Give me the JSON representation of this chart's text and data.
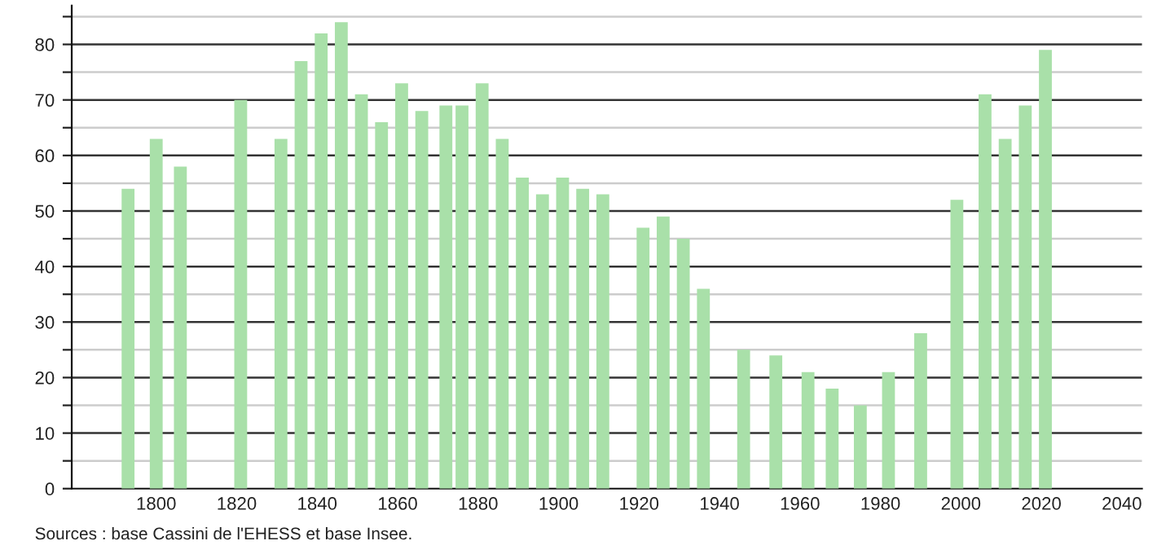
{
  "chart_data": {
    "type": "bar",
    "x": [
      1793,
      1800,
      1806,
      1821,
      1831,
      1836,
      1841,
      1846,
      1851,
      1856,
      1861,
      1866,
      1872,
      1876,
      1881,
      1886,
      1891,
      1896,
      1901,
      1906,
      1911,
      1921,
      1926,
      1931,
      1936,
      1946,
      1954,
      1962,
      1968,
      1975,
      1982,
      1990,
      1999,
      2006,
      2011,
      2016,
      2021
    ],
    "values": [
      54,
      63,
      58,
      70,
      63,
      77,
      82,
      84,
      71,
      66,
      73,
      68,
      69,
      69,
      73,
      63,
      56,
      53,
      56,
      54,
      53,
      47,
      49,
      45,
      36,
      25,
      24,
      21,
      18,
      15,
      21,
      28,
      52,
      71,
      63,
      69,
      79
    ],
    "color": "#a9e0a9",
    "xlim": [
      1779,
      2045
    ],
    "xticks": [
      1800,
      1820,
      1840,
      1860,
      1880,
      1900,
      1920,
      1940,
      1960,
      1980,
      2000,
      2020,
      2040
    ],
    "ylim": [
      0,
      87
    ],
    "yticks": [
      0,
      {
        "value": 5,
        "label": null
      },
      10,
      {
        "value": 15,
        "label": null
      },
      20,
      {
        "value": 25,
        "label": null
      },
      30,
      {
        "value": 35,
        "label": null
      },
      40,
      {
        "value": 45,
        "label": null
      },
      50,
      {
        "value": 55,
        "label": null
      },
      60,
      {
        "value": 65,
        "label": null
      },
      70,
      {
        "value": 75,
        "label": null
      },
      80,
      {
        "value": 85,
        "label": null
      }
    ],
    "grid": "y",
    "annotations": [
      "Sources : base Cassini de l'EHESS et base Insee."
    ]
  }
}
